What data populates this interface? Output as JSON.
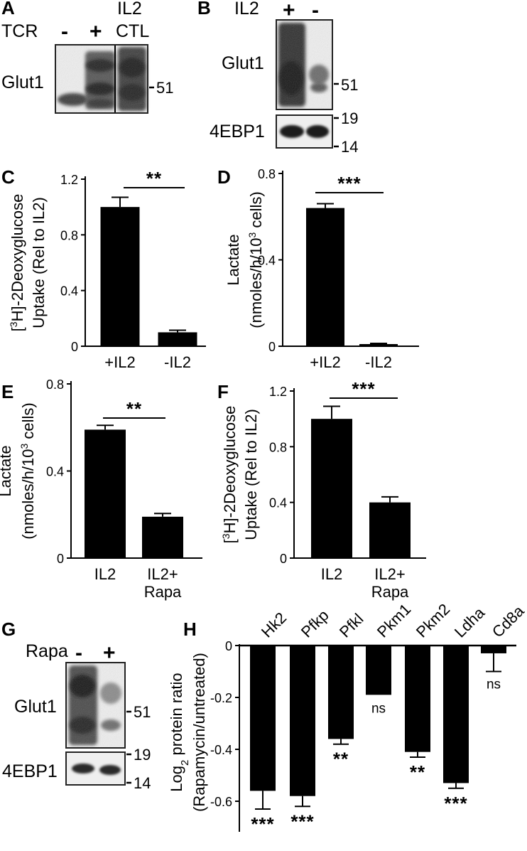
{
  "blots": {
    "A": {
      "letter": "A",
      "row1_label": "TCR",
      "il2_label": "IL2",
      "minus": "-",
      "plus": "+",
      "ctl": "CTL",
      "protein": "Glut1",
      "marker_51": "51"
    },
    "B": {
      "letter": "B",
      "il2_label": "IL2",
      "plus": "+",
      "minus": "-",
      "protein1": "Glut1",
      "protein2": "4EBP1",
      "marker_51": "51",
      "marker_19": "19",
      "marker_14": "14"
    },
    "G": {
      "letter": "G",
      "rapa_label": "Rapa",
      "minus": "-",
      "plus": "+",
      "protein1": "Glut1",
      "protein2": "4EBP1",
      "marker_51": "51",
      "marker_19": "19",
      "marker_14": "14"
    }
  },
  "chart_data": [
    {
      "panel": "C",
      "type": "bar",
      "categories": [
        "+IL2",
        "-IL2"
      ],
      "category_lines": [
        [
          "+IL2"
        ],
        [
          "-IL2"
        ]
      ],
      "values": [
        1.0,
        0.1
      ],
      "errors": [
        0.07,
        0.015
      ],
      "ylim": [
        0,
        1.2
      ],
      "yticks": [
        "0",
        "0.4",
        "0.8",
        "1.2"
      ],
      "ylabel_line1": "[3H]-2Deoxyglucose",
      "ylabel_line2": "Uptake (Rel to IL2)",
      "significance": "**"
    },
    {
      "panel": "D",
      "type": "bar",
      "categories": [
        "+IL2",
        "-IL2"
      ],
      "category_lines": [
        [
          "+IL2"
        ],
        [
          "-IL2"
        ]
      ],
      "values": [
        0.64,
        0.01
      ],
      "errors": [
        0.02,
        0.003
      ],
      "ylim": [
        0,
        0.8
      ],
      "yticks": [
        "0",
        "0.4",
        "0.8"
      ],
      "ylabel_line1": "Lactate",
      "ylabel_line2": "(nmoles/h/103 cells)",
      "significance": "***"
    },
    {
      "panel": "E",
      "type": "bar",
      "categories": [
        "IL2",
        "IL2+ Rapa"
      ],
      "category_lines": [
        [
          "IL2"
        ],
        [
          "IL2+",
          "Rapa"
        ]
      ],
      "values": [
        0.59,
        0.19
      ],
      "errors": [
        0.02,
        0.015
      ],
      "ylim": [
        0,
        0.8
      ],
      "yticks": [
        "0",
        "0.4",
        "0.8"
      ],
      "ylabel_line1": "Lactate",
      "ylabel_line2": "(nmoles/h/103 cells)",
      "significance": "**"
    },
    {
      "panel": "F",
      "type": "bar",
      "categories": [
        "IL2",
        "IL2+ Rapa"
      ],
      "category_lines": [
        [
          "IL2"
        ],
        [
          "IL2+",
          "Rapa"
        ]
      ],
      "values": [
        1.0,
        0.4
      ],
      "errors": [
        0.09,
        0.04
      ],
      "ylim": [
        0,
        1.2
      ],
      "yticks": [
        "0",
        "0.4",
        "0.8",
        "1.2"
      ],
      "ylabel_line1": "[3H]-2Deoxyglucose",
      "ylabel_line2": "Uptake (Rel to IL2)",
      "significance": "***"
    },
    {
      "panel": "H",
      "type": "bar",
      "categories": [
        "Hk2",
        "Pfkp",
        "Pfkl",
        "Pkm1",
        "Pkm2",
        "Ldha",
        "Cd8a"
      ],
      "values": [
        -0.56,
        -0.58,
        -0.36,
        -0.19,
        -0.41,
        -0.53,
        -0.03
      ],
      "errors": [
        0.07,
        0.04,
        0.02,
        0.003,
        0.02,
        0.02,
        0.07
      ],
      "significance": [
        "***",
        "***",
        "**",
        "ns",
        "**",
        "***",
        "ns"
      ],
      "ylim": [
        -0.65,
        0
      ],
      "yticks": [
        "0",
        "-0.2",
        "-0.4",
        "-0.6"
      ],
      "ylabel_line1": "Log2 protein ratio",
      "ylabel_line2": "(Rapamycin/untreated)"
    }
  ],
  "panel_letters": {
    "C": "C",
    "D": "D",
    "E": "E",
    "F": "F",
    "H": "H"
  }
}
